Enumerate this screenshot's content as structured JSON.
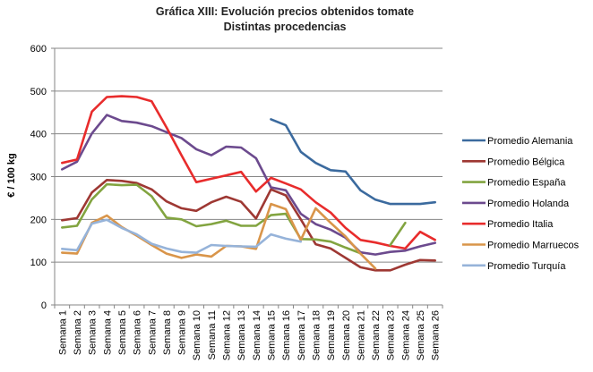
{
  "chart_data": {
    "type": "line",
    "title_lines": [
      "Gráfica XIII: Evolución precios obtenidos tomate",
      "Distintas procedencias"
    ],
    "xlabel": "",
    "ylabel": "€ / 100 kg",
    "ylim": [
      0,
      600
    ],
    "yticks": [
      0,
      100,
      200,
      300,
      400,
      500,
      600
    ],
    "grid": true,
    "legend_position": "right",
    "categories": [
      "Semana 1",
      "Semana 2",
      "Semana 3",
      "Semana 4",
      "Semana 5",
      "Semana 6",
      "Semana 7",
      "Semana 8",
      "Semana 9",
      "Semana 10",
      "Semana 11",
      "Semana 12",
      "Semana 13",
      "Semana 14",
      "Semana 15",
      "Semana 16",
      "Semana 17",
      "Semana 18",
      "Semana 19",
      "Semana 20",
      "Semana 21",
      "Semana 22",
      "Semana 23",
      "Semana 24",
      "Semana 25",
      "Semana 26"
    ],
    "series": [
      {
        "name": "Promedio Alemania",
        "color": "#3b6a9e",
        "values": [
          null,
          null,
          null,
          null,
          null,
          null,
          null,
          null,
          null,
          null,
          null,
          null,
          null,
          null,
          434,
          420,
          358,
          332,
          315,
          312,
          268,
          246,
          236,
          236,
          236,
          240
        ]
      },
      {
        "name": "Promedio Bélgica",
        "color": "#9e3833",
        "values": [
          198,
          203,
          263,
          292,
          290,
          285,
          270,
          242,
          226,
          220,
          240,
          253,
          241,
          202,
          270,
          256,
          200,
          142,
          132,
          110,
          88,
          81,
          81,
          94,
          105,
          104
        ]
      },
      {
        "name": "Promedio España",
        "color": "#82a440",
        "values": [
          181,
          185,
          247,
          282,
          280,
          281,
          254,
          204,
          200,
          184,
          189,
          197,
          185,
          185,
          210,
          213,
          154,
          153,
          148,
          134,
          121,
          null,
          null,
          null,
          null,
          null
        ]
      },
      {
        "name": "Promedio Holanda",
        "color": "#6c4a8e",
        "values": [
          317,
          335,
          401,
          444,
          430,
          426,
          418,
          404,
          390,
          364,
          350,
          370,
          368,
          343,
          275,
          268,
          213,
          189,
          176,
          157,
          123,
          118,
          124,
          127,
          137,
          145
        ]
      },
      {
        "name": "Promedio Italia",
        "color": "#e82c2c",
        "values": [
          332,
          340,
          452,
          486,
          488,
          486,
          476,
          415,
          350,
          287,
          295,
          303,
          311,
          265,
          297,
          284,
          270,
          240,
          216,
          180,
          152,
          146,
          138,
          132,
          171,
          152
        ]
      },
      {
        "name": "Promedio Marruecos",
        "color": "#d9954a",
        "values": [
          122,
          120,
          192,
          209,
          182,
          162,
          140,
          120,
          110,
          118,
          113,
          138,
          137,
          131,
          236,
          224,
          152,
          226,
          192,
          160,
          120,
          85,
          null,
          null,
          null,
          null
        ]
      },
      {
        "name": "Promedio Turquía",
        "color": "#96b3d9",
        "values": [
          131,
          128,
          190,
          199,
          180,
          165,
          143,
          132,
          124,
          122,
          140,
          138,
          137,
          136,
          165,
          155,
          148,
          null,
          null,
          null,
          null,
          null,
          null,
          null,
          null,
          null
        ]
      }
    ],
    "extra_segments": [
      {
        "series": "Promedio España",
        "values": [
          null,
          null,
          null,
          null,
          null,
          null,
          null,
          null,
          null,
          null,
          null,
          null,
          null,
          null,
          null,
          null,
          null,
          null,
          null,
          null,
          null,
          null,
          140,
          192,
          null,
          null
        ]
      }
    ]
  }
}
